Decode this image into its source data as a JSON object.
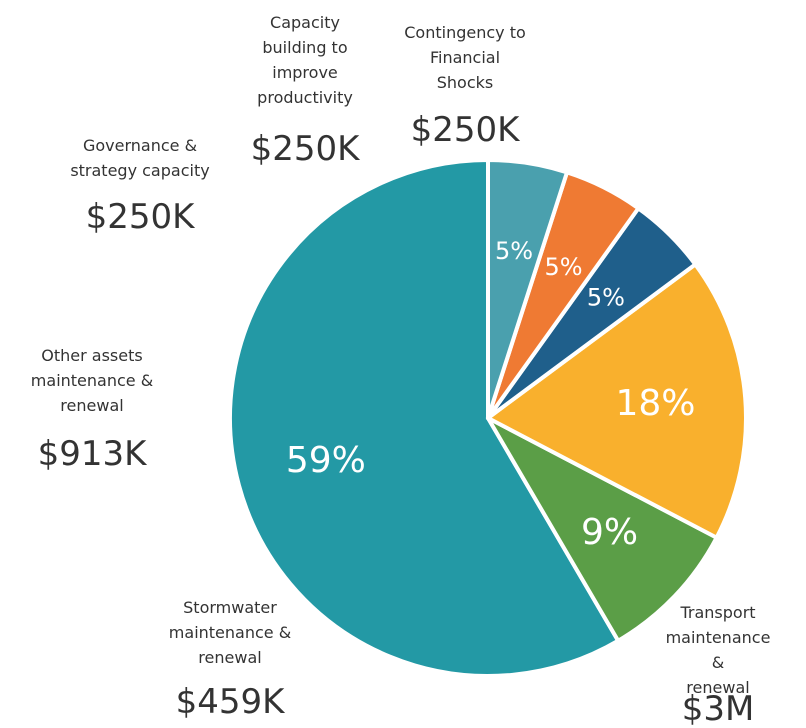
{
  "chart_data": {
    "type": "pie",
    "categories": [
      "Transport\nmaintenance &\nrenewal",
      "Stormwater\nmaintenance &\nrenewal",
      "Other assets\nmaintenance &\nrenewal",
      "Governance &\nstrategy capacity",
      "Capacity\nbuilding to\nimprove\nproductivity",
      "Contingency to\nFinancial\nShocks"
    ],
    "values": [
      59,
      9,
      18,
      5,
      5,
      5
    ],
    "value_labels": [
      "59%",
      "9%",
      "18%",
      "5%",
      "5%",
      "5%"
    ],
    "amounts": [
      "$3M",
      "$459K",
      "$913K",
      "$250K",
      "$250K",
      "$250K"
    ],
    "colors": [
      "#2399a5",
      "#5b9e47",
      "#f9b02d",
      "#1f5f8b",
      "#ef7a33",
      "#4aa0ae"
    ]
  }
}
